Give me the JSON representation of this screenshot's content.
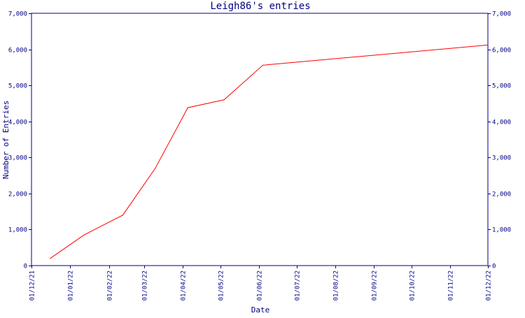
{
  "chart_data": {
    "type": "line",
    "title": "Leigh86's entries",
    "xlabel": "Date",
    "ylabel": "Number of Entries",
    "ylim": [
      0,
      7000
    ],
    "xlim": [
      "2021-12-01",
      "2022-12-01"
    ],
    "y_ticks": [
      0,
      1000,
      2000,
      3000,
      4000,
      5000,
      6000,
      7000
    ],
    "y_tick_labels": [
      "0",
      "1,000",
      "2,000",
      "3,000",
      "4,000",
      "5,000",
      "6,000",
      "7,000"
    ],
    "x_ticks": [
      "2021-12-01",
      "2022-01-01",
      "2022-02-01",
      "2022-03-01",
      "2022-04-01",
      "2022-05-01",
      "2022-06-01",
      "2022-07-01",
      "2022-08-01",
      "2022-09-01",
      "2022-10-01",
      "2022-11-01",
      "2022-12-01"
    ],
    "x_tick_labels": [
      "01/12/21",
      "01/01/22",
      "01/02/22",
      "01/03/22",
      "01/04/22",
      "01/05/22",
      "01/06/22",
      "01/07/22",
      "01/08/22",
      "01/09/22",
      "01/10/22",
      "01/11/22",
      "01/12/22"
    ],
    "series": [
      {
        "color": "#ff0000",
        "x": [
          "2021-12-16",
          "2022-01-12",
          "2022-02-12",
          "2022-03-10",
          "2022-04-05",
          "2022-05-04",
          "2022-06-04",
          "2022-12-01"
        ],
        "y": [
          200,
          850,
          1400,
          2700,
          4380,
          4600,
          5560,
          6120
        ]
      }
    ],
    "grid": false,
    "right_axis_mirror": true
  },
  "colors": {
    "axis": "#000080",
    "line": "#ff0000",
    "background": "#ffffff"
  }
}
